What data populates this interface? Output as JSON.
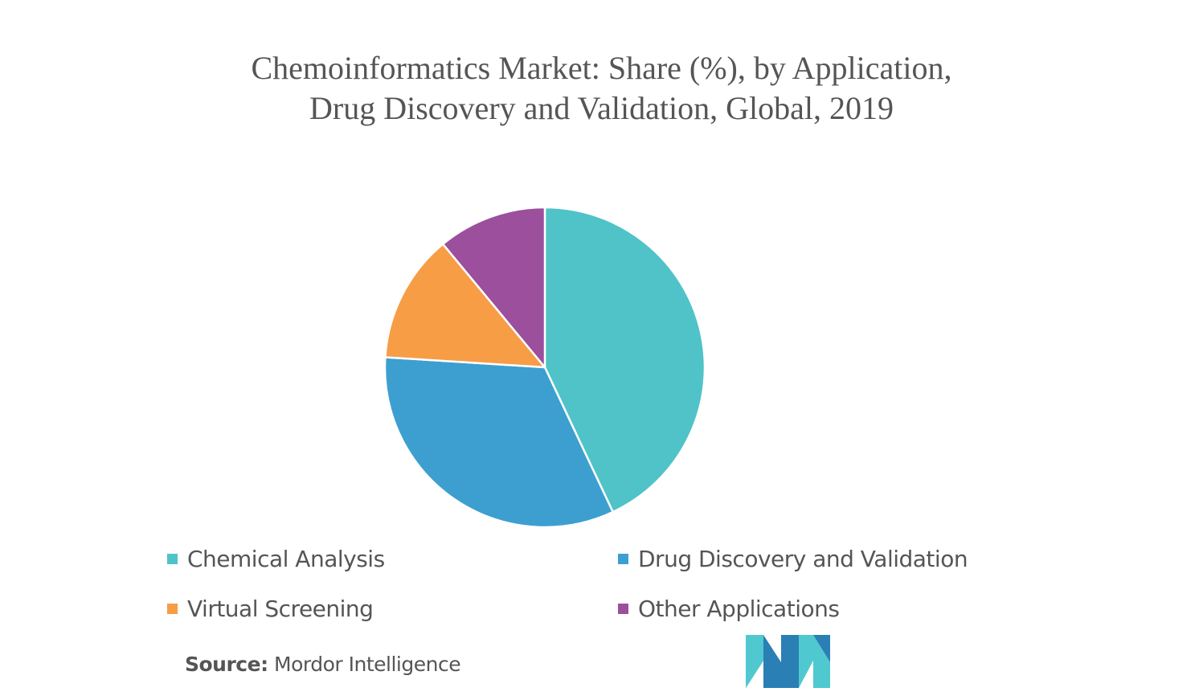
{
  "title": {
    "line1": "Chemoinformatics Market: Share (%), by Application,",
    "line2": "Drug Discovery and Validation, Global, 2019"
  },
  "chart_data": {
    "type": "pie",
    "title": "Chemoinformatics Market: Share (%), by Application, Drug Discovery and Validation, Global, 2019",
    "slices": [
      {
        "label": "Chemical Analysis",
        "value": 43,
        "color": "#4fc3c8"
      },
      {
        "label": "Drug Discovery and Validation",
        "value": 33,
        "color": "#3c9fd0"
      },
      {
        "label": "Virtual Screening",
        "value": 13,
        "color": "#f79d46"
      },
      {
        "label": "Other Applications",
        "value": 11,
        "color": "#9b4f9d"
      }
    ],
    "start_angle": "top",
    "direction": "clockwise",
    "legend_position": "bottom"
  },
  "legend": [
    {
      "label": "Chemical Analysis",
      "color": "#4fc3c8"
    },
    {
      "label": "Drug Discovery and Validation",
      "color": "#3c9fd0"
    },
    {
      "label": "Virtual Screening",
      "color": "#f79d46"
    },
    {
      "label": "Other Applications",
      "color": "#9b4f9d"
    }
  ],
  "source": {
    "prefix": "Source:",
    "text": " Mordor Intelligence"
  },
  "logo": {
    "name": "mordor-intelligence-logo",
    "colors": [
      "#2a7fb5",
      "#4fc9cf"
    ]
  }
}
